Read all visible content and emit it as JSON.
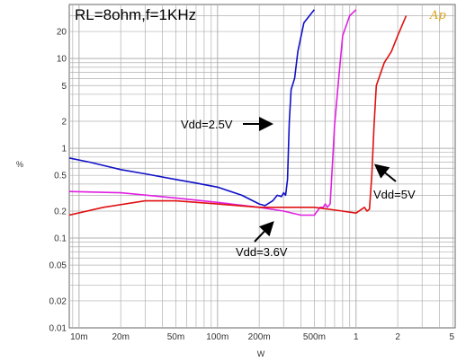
{
  "chart_data": {
    "type": "line",
    "title": "RL=8ohm,f=1KHz",
    "xlabel": "W",
    "ylabel": "%",
    "xscale": "log",
    "yscale": "log",
    "xlim": [
      0.0085,
      5.2
    ],
    "ylim": [
      0.01,
      40
    ],
    "grid": true,
    "logo": "Ap",
    "x_ticks": [
      {
        "v": 0.01,
        "label": "10m"
      },
      {
        "v": 0.02,
        "label": "20m"
      },
      {
        "v": 0.05,
        "label": "50m"
      },
      {
        "v": 0.1,
        "label": "100m"
      },
      {
        "v": 0.2,
        "label": "200m"
      },
      {
        "v": 0.5,
        "label": "500m"
      },
      {
        "v": 1,
        "label": "1"
      },
      {
        "v": 2,
        "label": "2"
      },
      {
        "v": 5,
        "label": "5"
      }
    ],
    "y_ticks": [
      {
        "v": 0.01,
        "label": "0.01"
      },
      {
        "v": 0.02,
        "label": "0.02"
      },
      {
        "v": 0.05,
        "label": "0.05"
      },
      {
        "v": 0.1,
        "label": "0.1"
      },
      {
        "v": 0.2,
        "label": "0.2"
      },
      {
        "v": 0.5,
        "label": "0.5"
      },
      {
        "v": 1,
        "label": "1"
      },
      {
        "v": 2,
        "label": "2"
      },
      {
        "v": 5,
        "label": "5"
      },
      {
        "v": 10,
        "label": "10"
      },
      {
        "v": 20,
        "label": "20"
      }
    ],
    "series": [
      {
        "name": "Vdd=2.5V",
        "color": "#1010c8",
        "x": [
          0.0085,
          0.012,
          0.02,
          0.03,
          0.05,
          0.07,
          0.1,
          0.15,
          0.2,
          0.22,
          0.25,
          0.27,
          0.29,
          0.3,
          0.31,
          0.32,
          0.33,
          0.34,
          0.36,
          0.38,
          0.42,
          0.5
        ],
        "y": [
          0.78,
          0.7,
          0.58,
          0.52,
          0.45,
          0.41,
          0.37,
          0.3,
          0.24,
          0.23,
          0.26,
          0.3,
          0.29,
          0.32,
          0.3,
          0.45,
          2.0,
          4.5,
          6.0,
          12,
          25,
          35
        ]
      },
      {
        "name": "Vdd=3.6V",
        "color": "#e020e0",
        "x": [
          0.0085,
          0.02,
          0.05,
          0.1,
          0.2,
          0.3,
          0.4,
          0.5,
          0.55,
          0.58,
          0.6,
          0.62,
          0.65,
          0.68,
          0.7,
          0.75,
          0.8,
          0.9,
          1.0
        ],
        "y": [
          0.33,
          0.32,
          0.28,
          0.25,
          0.22,
          0.2,
          0.18,
          0.18,
          0.22,
          0.22,
          0.24,
          0.22,
          0.24,
          0.8,
          1.8,
          6.0,
          18,
          30,
          35
        ]
      },
      {
        "name": "Vdd=5V",
        "color": "#e01010",
        "x": [
          0.0085,
          0.015,
          0.03,
          0.05,
          0.1,
          0.2,
          0.5,
          0.8,
          1.0,
          1.15,
          1.2,
          1.25,
          1.3,
          1.35,
          1.4,
          1.6,
          1.8,
          2.0,
          2.3
        ],
        "y": [
          0.18,
          0.22,
          0.26,
          0.26,
          0.24,
          0.22,
          0.22,
          0.2,
          0.19,
          0.22,
          0.2,
          0.21,
          0.5,
          1.8,
          5.0,
          9.0,
          12,
          18,
          30
        ]
      }
    ],
    "annotations": [
      {
        "text": "Vdd=2.5V",
        "series": 0
      },
      {
        "text": "Vdd=3.6V",
        "series": 1
      },
      {
        "text": "Vdd=5V",
        "series": 2
      }
    ]
  }
}
